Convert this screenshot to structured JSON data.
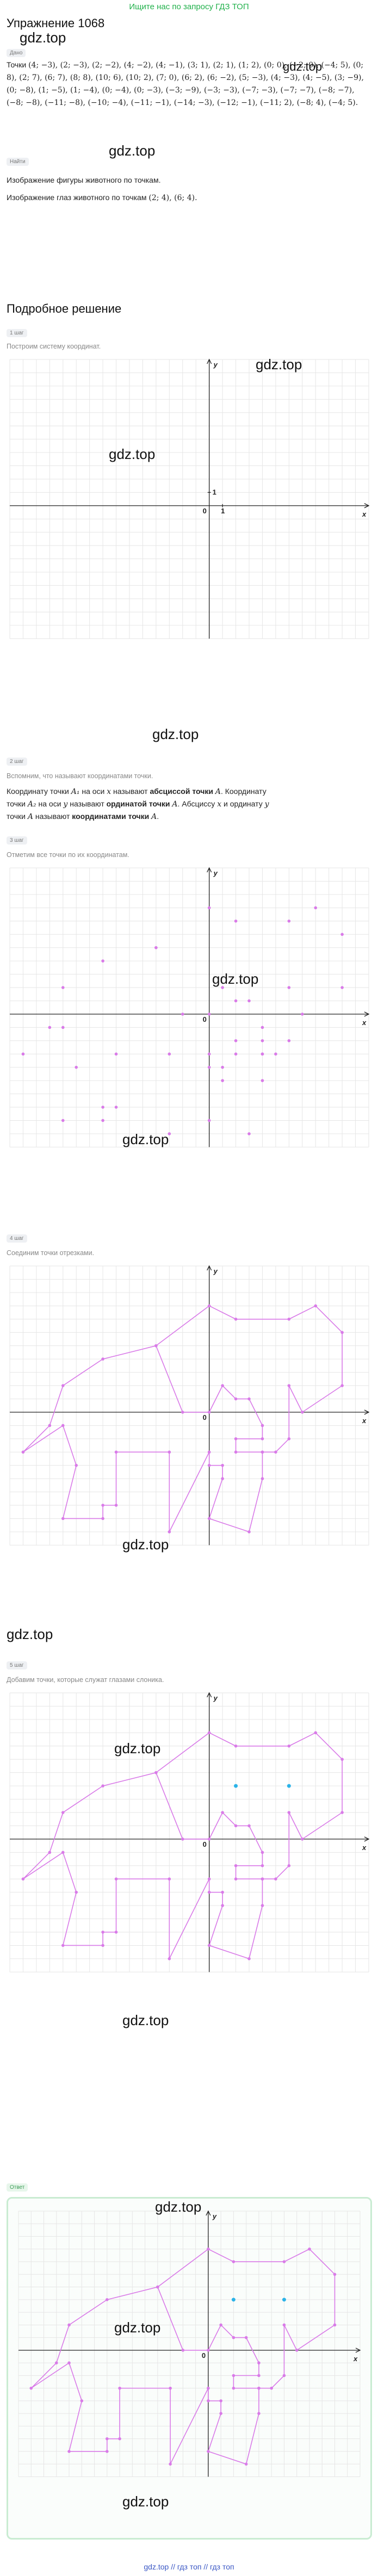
{
  "top_link": "Ищите нас по запросу ГДЗ ТОП",
  "exercise_title": "Упражнение 1068",
  "watermark": "gdz.top",
  "labels": {
    "given": "Дано",
    "find": "Найти",
    "answer": "Ответ"
  },
  "given_prefix": "Точки",
  "given_points_text": "(4; −3), (2; −3), (2; −2), (4; −2), (4; −1), (3; 1), (2; 1), (1; 2), (0; 0), (−2; 0), (−4; 5), (0; 8), (2; 7), (6; 7), (8; 8), (10; 6), (10; 2), (7; 0), (6; 2), (6; −2), (5; −3), (4; −3), (4; −5), (3; −9), (0; −8), (1; −5), (1; −4), (0; −4), (0; −3), (−3; −9), (−3; −3), (−7; −3), (−7; −7), (−8; −7), (−8; −8), (−11; −8), (−10; −4), (−11; −1), (−14; −3), (−12; −1), (−11; 2), (−8; 4), (−4; 5).",
  "find_line1": "Изображение фигуры животного по точкам.",
  "find_line2_prefix": "Изображение глаз животного по точкам",
  "find_line2_points": "(2; 4), (6; 4).",
  "solution_title": "Подробное решение",
  "steps": [
    {
      "tag": "1 шаг",
      "note": "Построим систему координат."
    },
    {
      "tag": "2 шаг",
      "note": "Вспомним, что называют координатами точки."
    },
    {
      "tag": "3 шаг",
      "note": "Отметим все точки по их координатам."
    },
    {
      "tag": "4 шаг",
      "note": "Соединим точки отрезками."
    },
    {
      "tag": "5 шаг",
      "note": "Добавим точки, которые служат глазами слоника."
    }
  ],
  "step2_text": {
    "l1a": "Координату точки ",
    "A1": "A₁",
    "l1b": " на оси ",
    "x": "x",
    "l1c": " называют ",
    "abscissa": "абсциссой точки",
    "A": "A",
    "l1d": ". Координату",
    "l2a": "точки ",
    "A2": "A₂",
    "l2b": " на оси ",
    "y": "y",
    "l2c": " называют ",
    "ordinate": "ординатой точки",
    "l2d": ". Абсциссу ",
    "l2e": " и ординату ",
    "l3a": "точки ",
    "l3b": " называют ",
    "coords": "координатами точки",
    "end": "."
  },
  "axes": {
    "x": "x",
    "y": "y",
    "origin": "0",
    "unit_x": "1",
    "unit_y": "1"
  },
  "footer": "gdz.top  //  гдз топ  //  гдз топ",
  "colors": {
    "figure": "#d97be8",
    "eyes": "#2bb3e8",
    "link": "#22b14c",
    "footer": "#3a57c4"
  },
  "chart_data": [
    {
      "type": "scatter",
      "description_points": [
        [
          4,
          -3
        ],
        [
          2,
          -3
        ],
        [
          2,
          -2
        ],
        [
          4,
          -2
        ],
        [
          4,
          -1
        ],
        [
          3,
          1
        ],
        [
          2,
          1
        ],
        [
          1,
          2
        ],
        [
          0,
          0
        ],
        [
          -2,
          0
        ],
        [
          -4,
          5
        ],
        [
          0,
          8
        ],
        [
          2,
          7
        ],
        [
          6,
          7
        ],
        [
          8,
          8
        ],
        [
          10,
          6
        ],
        [
          10,
          2
        ],
        [
          7,
          0
        ],
        [
          6,
          2
        ],
        [
          6,
          -2
        ],
        [
          5,
          -3
        ],
        [
          4,
          -3
        ],
        [
          4,
          -5
        ],
        [
          3,
          -9
        ],
        [
          0,
          -8
        ],
        [
          1,
          -5
        ],
        [
          1,
          -4
        ],
        [
          0,
          -4
        ],
        [
          0,
          -3
        ],
        [
          -3,
          -9
        ],
        [
          -3,
          -3
        ],
        [
          -7,
          -3
        ],
        [
          -7,
          -7
        ],
        [
          -8,
          -7
        ],
        [
          -8,
          -8
        ],
        [
          -11,
          -8
        ],
        [
          -10,
          -4
        ],
        [
          -11,
          -1
        ],
        [
          -14,
          -3
        ],
        [
          -12,
          -1
        ],
        [
          -11,
          2
        ],
        [
          -8,
          4
        ],
        [
          -4,
          5
        ]
      ],
      "eyes": [
        [
          2,
          4
        ],
        [
          6,
          4
        ]
      ],
      "xlim": [
        -15,
        12
      ],
      "ylim": [
        -10,
        11
      ],
      "xlabel": "x",
      "ylabel": "y",
      "grid": true
    }
  ]
}
